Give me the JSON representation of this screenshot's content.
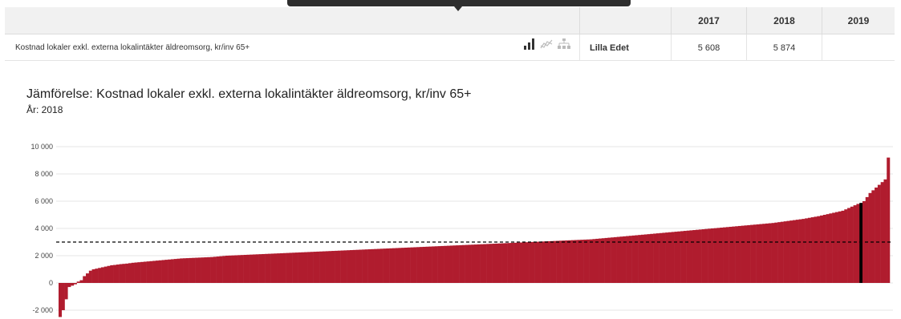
{
  "table": {
    "years": [
      "2017",
      "2018",
      "2019"
    ],
    "row": {
      "indicator": "Kostnad lokaler exkl. externa lokalintäkter äldreomsorg, kr/inv 65+",
      "municipality": "Lilla Edet",
      "values": [
        "5 608",
        "5 874",
        ""
      ]
    }
  },
  "icons": [
    "bar-chart-icon",
    "line-chart-icon",
    "tree-icon"
  ],
  "colors": {
    "bar": "#b01c2e",
    "highlight": "#000000",
    "reference_line": "#000000"
  },
  "chart_data": {
    "type": "bar",
    "title": "Jämförelse: Kostnad lokaler exkl. externa lokalintäkter äldreomsorg, kr/inv 65+",
    "subtitle": "År: 2018",
    "ylim": [
      -2500,
      10500
    ],
    "yticks": [
      -2000,
      0,
      2000,
      4000,
      6000,
      8000,
      10000
    ],
    "ytick_labels": [
      "-2 000",
      "0",
      "2 000",
      "4 000",
      "6 000",
      "8 000",
      "10 000"
    ],
    "reference_line": 3000,
    "highlight_value": 5874,
    "grid": true,
    "sorted": "ascending",
    "values": [
      -2500,
      -2000,
      -1200,
      -300,
      -200,
      -100,
      100,
      200,
      500,
      700,
      900,
      1000,
      1050,
      1100,
      1150,
      1200,
      1250,
      1300,
      1320,
      1350,
      1380,
      1400,
      1420,
      1450,
      1480,
      1500,
      1520,
      1540,
      1560,
      1580,
      1600,
      1620,
      1640,
      1660,
      1680,
      1700,
      1720,
      1740,
      1760,
      1780,
      1800,
      1810,
      1820,
      1830,
      1840,
      1850,
      1860,
      1870,
      1880,
      1890,
      1900,
      1920,
      1940,
      1960,
      1980,
      2000,
      2010,
      2020,
      2030,
      2040,
      2050,
      2060,
      2070,
      2080,
      2090,
      2100,
      2110,
      2120,
      2130,
      2140,
      2150,
      2160,
      2170,
      2180,
      2190,
      2200,
      2210,
      2220,
      2230,
      2240,
      2250,
      2260,
      2270,
      2280,
      2290,
      2300,
      2310,
      2320,
      2330,
      2340,
      2350,
      2360,
      2370,
      2380,
      2390,
      2400,
      2410,
      2420,
      2430,
      2440,
      2450,
      2460,
      2470,
      2480,
      2490,
      2500,
      2510,
      2520,
      2530,
      2540,
      2550,
      2560,
      2570,
      2580,
      2590,
      2600,
      2610,
      2620,
      2630,
      2640,
      2650,
      2660,
      2670,
      2680,
      2690,
      2700,
      2710,
      2720,
      2730,
      2740,
      2750,
      2760,
      2770,
      2780,
      2790,
      2800,
      2810,
      2820,
      2830,
      2840,
      2850,
      2860,
      2870,
      2880,
      2890,
      2900,
      2910,
      2920,
      2930,
      2940,
      2950,
      2960,
      2970,
      2980,
      2990,
      3000,
      3010,
      3020,
      3030,
      3040,
      3050,
      3060,
      3070,
      3080,
      3090,
      3100,
      3110,
      3120,
      3130,
      3140,
      3150,
      3160,
      3170,
      3180,
      3190,
      3200,
      3220,
      3240,
      3260,
      3280,
      3300,
      3320,
      3340,
      3360,
      3380,
      3400,
      3420,
      3440,
      3460,
      3480,
      3500,
      3520,
      3540,
      3560,
      3580,
      3600,
      3620,
      3640,
      3660,
      3680,
      3700,
      3720,
      3740,
      3760,
      3780,
      3800,
      3820,
      3840,
      3860,
      3880,
      3900,
      3920,
      3940,
      3960,
      3980,
      4000,
      4020,
      4040,
      4060,
      4080,
      4100,
      4120,
      4140,
      4160,
      4180,
      4200,
      4220,
      4240,
      4260,
      4280,
      4300,
      4320,
      4340,
      4360,
      4380,
      4400,
      4430,
      4460,
      4490,
      4520,
      4550,
      4580,
      4610,
      4640,
      4670,
      4700,
      4740,
      4780,
      4820,
      4860,
      4900,
      4950,
      5000,
      5050,
      5100,
      5150,
      5200,
      5250,
      5300,
      5400,
      5500,
      5600,
      5700,
      5800,
      5874,
      6000,
      6300,
      6600,
      6800,
      7000,
      7200,
      7400,
      7600,
      9200
    ]
  }
}
